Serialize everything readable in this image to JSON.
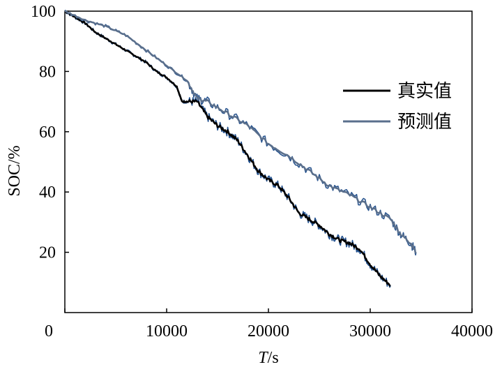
{
  "chart_data": {
    "type": "line",
    "xlabel_italic": "T",
    "xlabel_rest": "/s",
    "ylabel": "SOC/%",
    "xlim": [
      0,
      40000
    ],
    "ylim": [
      0,
      100
    ],
    "xticks": [
      0,
      10000,
      20000,
      30000,
      40000
    ],
    "xtick_labels": [
      "0",
      "10000",
      "20000",
      "30000",
      "40000"
    ],
    "yticks": [
      20,
      40,
      60,
      80,
      100
    ],
    "ytick_labels": [
      "20",
      "40",
      "60",
      "80",
      "100"
    ],
    "grid": false,
    "legend_position": "right",
    "series": [
      {
        "name": "真实值",
        "color": "#000000",
        "noise_color": "#1f4e8c",
        "x": [
          0,
          1000,
          2000,
          3000,
          4000,
          5000,
          6000,
          7000,
          8000,
          9000,
          10000,
          11000,
          11500,
          12000,
          13000,
          14000,
          15000,
          16000,
          17000,
          18000,
          19000,
          20000,
          21000,
          22000,
          23000,
          24000,
          25000,
          26000,
          27000,
          28000,
          29000,
          30000,
          31000,
          32000
        ],
        "values": [
          100,
          98,
          96,
          93,
          91,
          89,
          87,
          85,
          83,
          80,
          78,
          75,
          70,
          70,
          70,
          65,
          62,
          60,
          57,
          52,
          47,
          44,
          42,
          38,
          33,
          31,
          29,
          26,
          24,
          23,
          21,
          16,
          12,
          9
        ]
      },
      {
        "name": "预测值",
        "color": "#5a6f8c",
        "noise_color": "#2a558f",
        "x": [
          0,
          2000,
          4000,
          6000,
          8000,
          10000,
          12000,
          13000,
          14000,
          16000,
          18000,
          20000,
          22000,
          24000,
          26000,
          28000,
          30000,
          32000,
          33000,
          34000,
          34500
        ],
        "values": [
          100,
          97,
          95,
          92,
          87,
          82,
          77,
          71,
          70,
          66,
          62,
          56,
          52,
          47,
          42,
          39,
          35,
          31,
          26,
          23,
          20
        ]
      }
    ]
  }
}
